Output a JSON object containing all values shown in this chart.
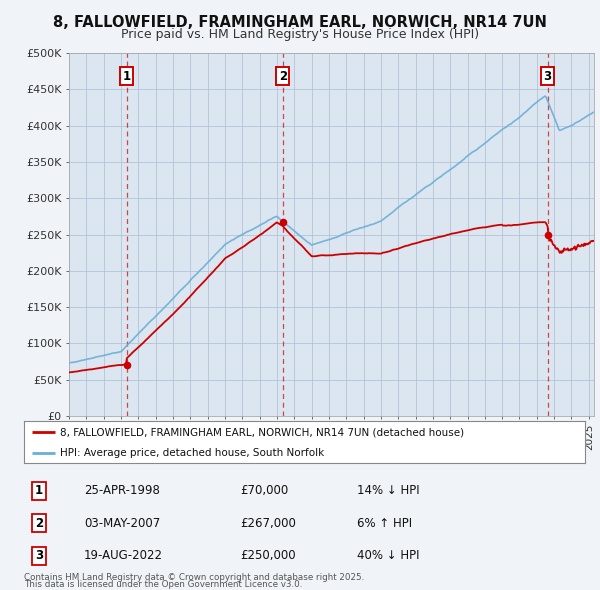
{
  "title": "8, FALLOWFIELD, FRAMINGHAM EARL, NORWICH, NR14 7UN",
  "subtitle": "Price paid vs. HM Land Registry's House Price Index (HPI)",
  "ylabel_ticks": [
    "£0",
    "£50K",
    "£100K",
    "£150K",
    "£200K",
    "£250K",
    "£300K",
    "£350K",
    "£400K",
    "£450K",
    "£500K"
  ],
  "ytick_values": [
    0,
    50000,
    100000,
    150000,
    200000,
    250000,
    300000,
    350000,
    400000,
    450000,
    500000
  ],
  "ylim": [
    0,
    500000
  ],
  "xlim_start": 1995.0,
  "xlim_end": 2025.3,
  "plot_bg_color": "#dce6f0",
  "fig_bg_color": "#f0f4f8",
  "grid_color": "#b0c4d8",
  "red_color": "#cc0000",
  "blue_color": "#6baed6",
  "transaction_dates": [
    1998.32,
    2007.34,
    2022.63
  ],
  "transaction_prices": [
    70000,
    267000,
    250000
  ],
  "transaction_labels": [
    "1",
    "2",
    "3"
  ],
  "legend_line1": "8, FALLOWFIELD, FRAMINGHAM EARL, NORWICH, NR14 7UN (detached house)",
  "legend_line2": "HPI: Average price, detached house, South Norfolk",
  "table_rows": [
    {
      "num": "1",
      "date": "25-APR-1998",
      "price": "£70,000",
      "hpi": "14% ↓ HPI"
    },
    {
      "num": "2",
      "date": "03-MAY-2007",
      "price": "£267,000",
      "hpi": "6% ↑ HPI"
    },
    {
      "num": "3",
      "date": "19-AUG-2022",
      "price": "£250,000",
      "hpi": "40% ↓ HPI"
    }
  ],
  "footnote1": "Contains HM Land Registry data © Crown copyright and database right 2025.",
  "footnote2": "This data is licensed under the Open Government Licence v3.0."
}
